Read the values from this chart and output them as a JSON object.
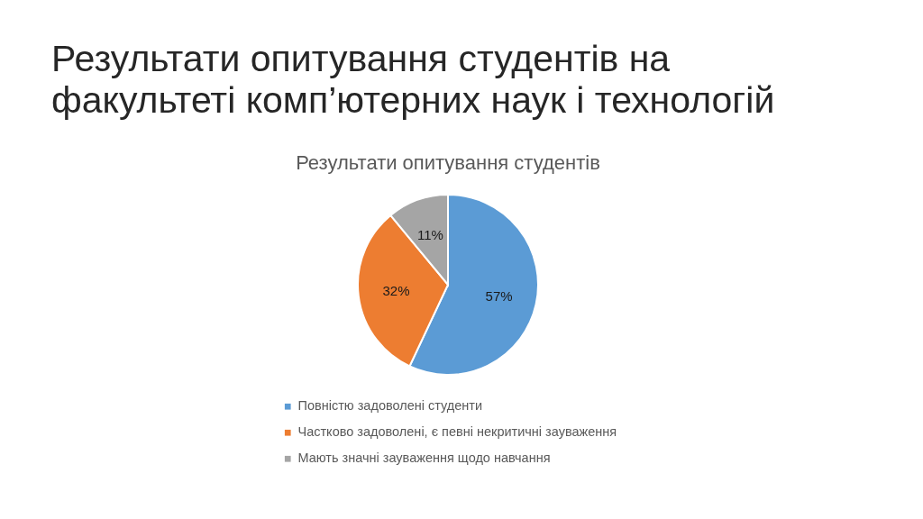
{
  "chart_data": {
    "type": "pie",
    "title": "Результати опитування студентів на факультеті комп’ютерних наук і технологій",
    "subtitle": "Результати опитування студентів",
    "categories": [
      "Повністю задоволені студенти",
      "Частково задоволені, є певні некритичні зауваження",
      "Мають значні зауваження щодо навчання"
    ],
    "values": [
      57,
      32,
      11
    ],
    "value_labels": [
      "57%",
      "32%",
      "11%"
    ],
    "colors": [
      "#5b9bd5",
      "#ed7d31",
      "#a5a5a5"
    ],
    "legend": "bottom"
  }
}
